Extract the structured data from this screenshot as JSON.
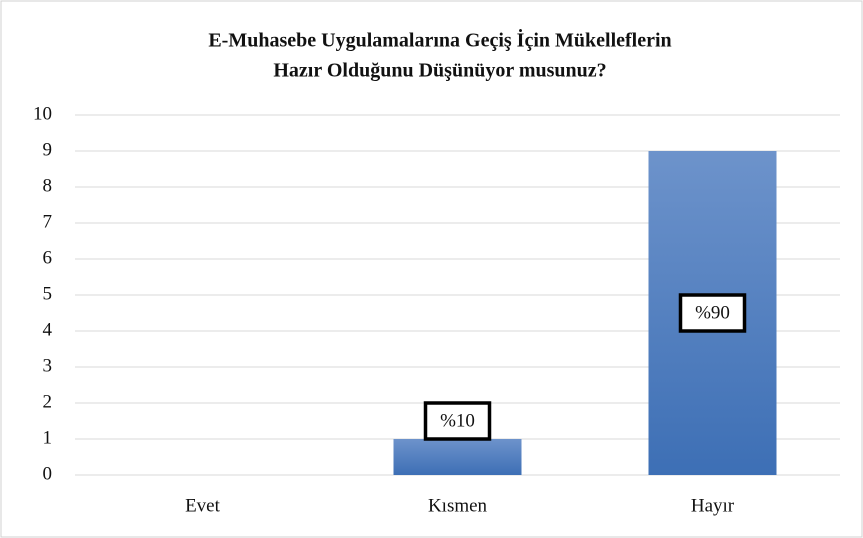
{
  "chart_data": {
    "type": "bar",
    "title": [
      "E-Muhasebe Uygulamalarına  Geçiş İçin Mükelleflerin",
      "Hazır Olduğunu  Düşünüyor  musunuz?"
    ],
    "categories": [
      "Evet",
      "Kısmen",
      "Hayır"
    ],
    "values": [
      0,
      1,
      9
    ],
    "value_labels": [
      null,
      "%10",
      "%90"
    ],
    "color": "#4a7bbf",
    "ylim": [
      0,
      10
    ],
    "yticks": [
      0,
      1,
      2,
      3,
      4,
      5,
      6,
      7,
      8,
      9,
      10
    ],
    "grid": true
  }
}
